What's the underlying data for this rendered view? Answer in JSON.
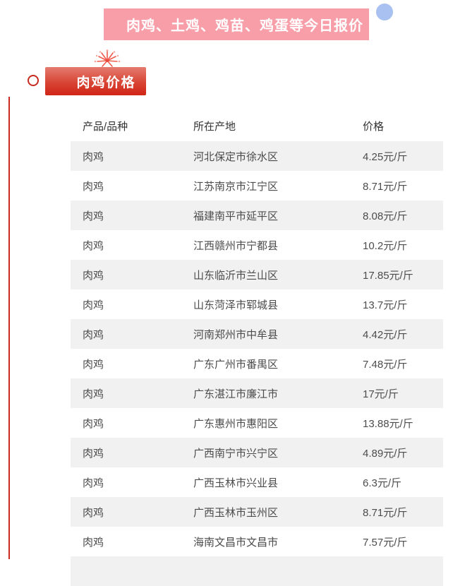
{
  "page": {
    "banner_title": "肉鸡、土鸡、鸡苗、鸡蛋等今日报价",
    "section_badge": "肉鸡价格"
  },
  "colors": {
    "banner_pink": "#f89ea8",
    "badge_red_top": "#e47b70",
    "badge_red_bottom": "#d02517",
    "accent_red": "#c9291f",
    "row_stripe": "#f1f1f1",
    "blue_dot": "#a8c1f0"
  },
  "table": {
    "headers": {
      "product": "产品/品种",
      "origin": "所在产地",
      "price": "价格"
    },
    "rows": [
      {
        "product": "肉鸡",
        "origin": "河北保定市徐水区",
        "price": "4.25元/斤"
      },
      {
        "product": "肉鸡",
        "origin": "江苏南京市江宁区",
        "price": "8.71元/斤"
      },
      {
        "product": "肉鸡",
        "origin": "福建南平市延平区",
        "price": "8.08元/斤"
      },
      {
        "product": "肉鸡",
        "origin": "江西赣州市宁都县",
        "price": "10.2元/斤"
      },
      {
        "product": "肉鸡",
        "origin": "山东临沂市兰山区",
        "price": "17.85元/斤"
      },
      {
        "product": "肉鸡",
        "origin": "山东菏泽市郓城县",
        "price": "13.7元/斤"
      },
      {
        "product": "肉鸡",
        "origin": "河南郑州市中牟县",
        "price": "4.42元/斤"
      },
      {
        "product": "肉鸡",
        "origin": "广东广州市番禺区",
        "price": "7.48元/斤"
      },
      {
        "product": "肉鸡",
        "origin": "广东湛江市廉江市",
        "price": "17元/斤"
      },
      {
        "product": "肉鸡",
        "origin": "广东惠州市惠阳区",
        "price": "13.88元/斤"
      },
      {
        "product": "肉鸡",
        "origin": "广西南宁市兴宁区",
        "price": "4.89元/斤"
      },
      {
        "product": "肉鸡",
        "origin": "广西玉林市兴业县",
        "price": "6.3元/斤"
      },
      {
        "product": "肉鸡",
        "origin": "广西玉林市玉州区",
        "price": "8.71元/斤"
      },
      {
        "product": "肉鸡",
        "origin": "海南文昌市文昌市",
        "price": "7.57元/斤"
      }
    ]
  }
}
